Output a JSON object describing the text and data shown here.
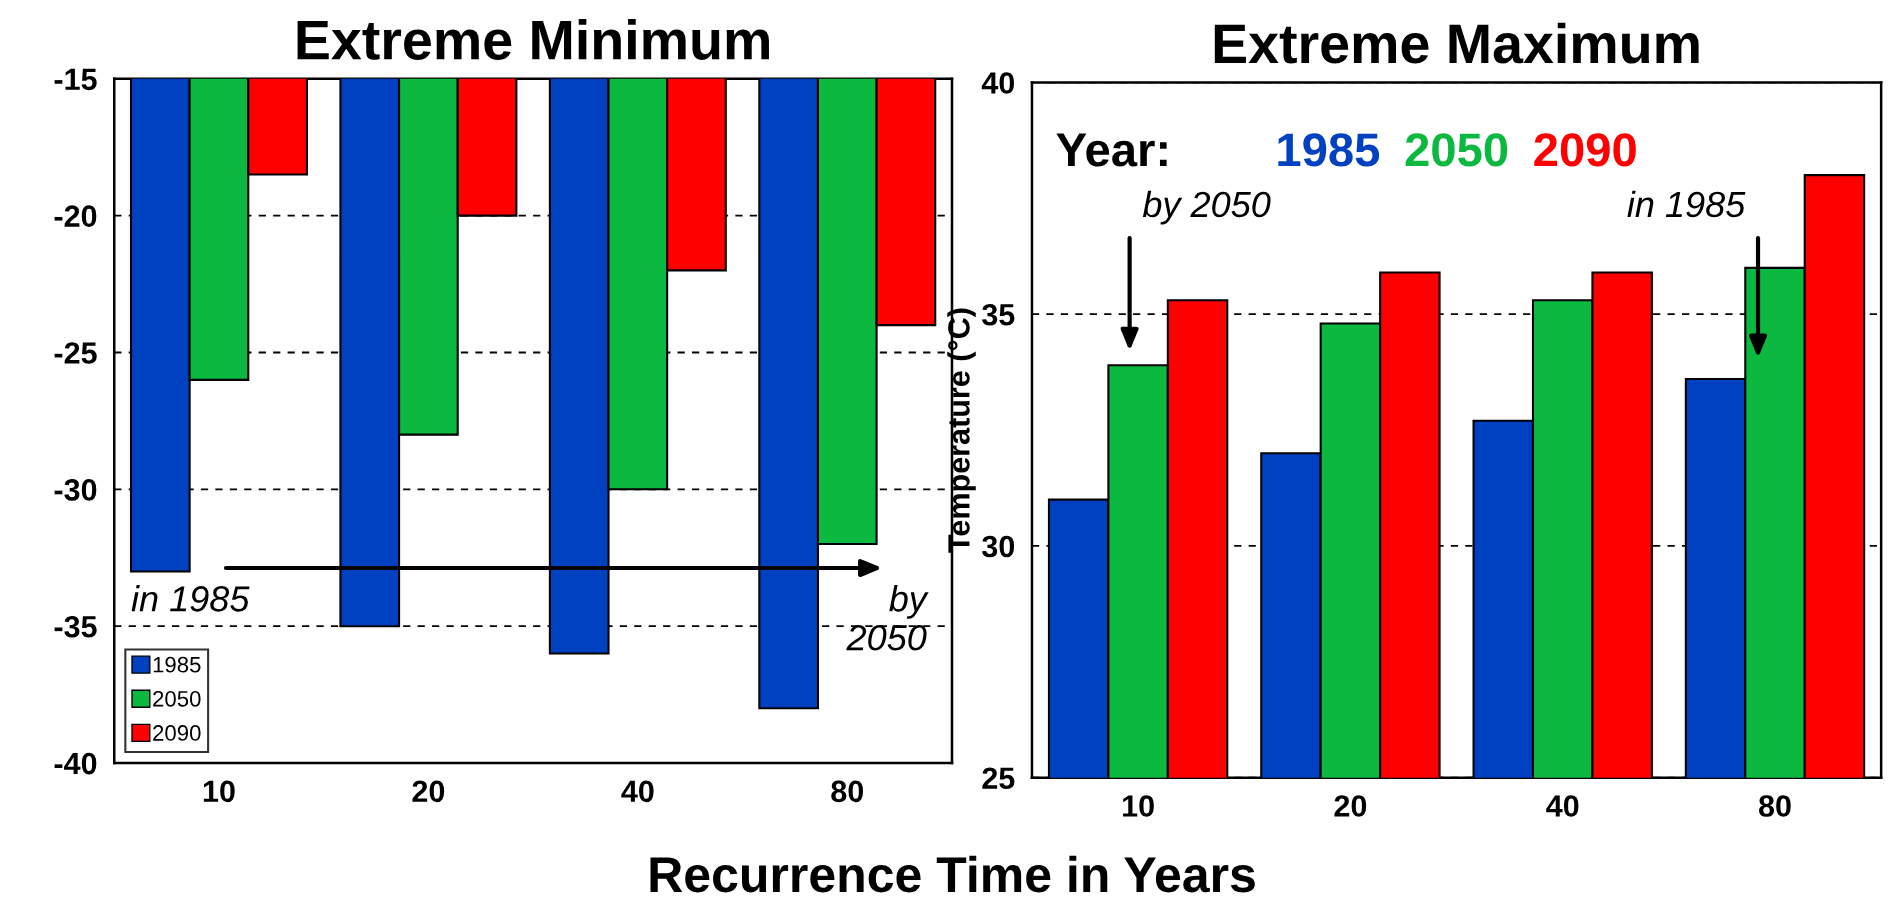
{
  "chart_data": [
    {
      "type": "bar",
      "title": "Extreme Minimum",
      "xlabel": "Recurrence Time in Years",
      "categories": [
        "10",
        "20",
        "40",
        "80"
      ],
      "series": [
        {
          "name": "1985",
          "color": "#0041c2",
          "values": [
            -33,
            -35,
            -36,
            -38
          ]
        },
        {
          "name": "2050",
          "color": "#0cb940",
          "values": [
            -26,
            -28,
            -30,
            -32
          ]
        },
        {
          "name": "2090",
          "color": "#ff0000",
          "values": [
            -18.5,
            -20,
            -22,
            -24
          ]
        }
      ],
      "ylim": [
        -40,
        -15
      ],
      "yticks": [
        -40,
        -35,
        -30,
        -25,
        -20,
        -15
      ],
      "grid": "y",
      "legend": "bottom left",
      "annotations": [
        "in 1985",
        "by\n2050"
      ]
    },
    {
      "type": "bar",
      "title": "Extreme Maximum",
      "ylabel": "Temperature (°C)",
      "legend_title": "Year:",
      "categories": [
        "10",
        "20",
        "40",
        "80"
      ],
      "series": [
        {
          "name": "1985",
          "color": "#0041c2",
          "values": [
            31,
            32,
            32.7,
            33.6
          ]
        },
        {
          "name": "2050",
          "color": "#0cb940",
          "values": [
            33.9,
            34.8,
            35.3,
            36
          ]
        },
        {
          "name": "2090",
          "color": "#ff0000",
          "values": [
            35.3,
            35.9,
            35.9,
            38
          ]
        }
      ],
      "ylim": [
        25,
        40
      ],
      "yticks": [
        25,
        30,
        35,
        40
      ],
      "grid": "y",
      "legend": "top",
      "annotations": [
        "by 2050",
        "in 1985"
      ]
    }
  ]
}
